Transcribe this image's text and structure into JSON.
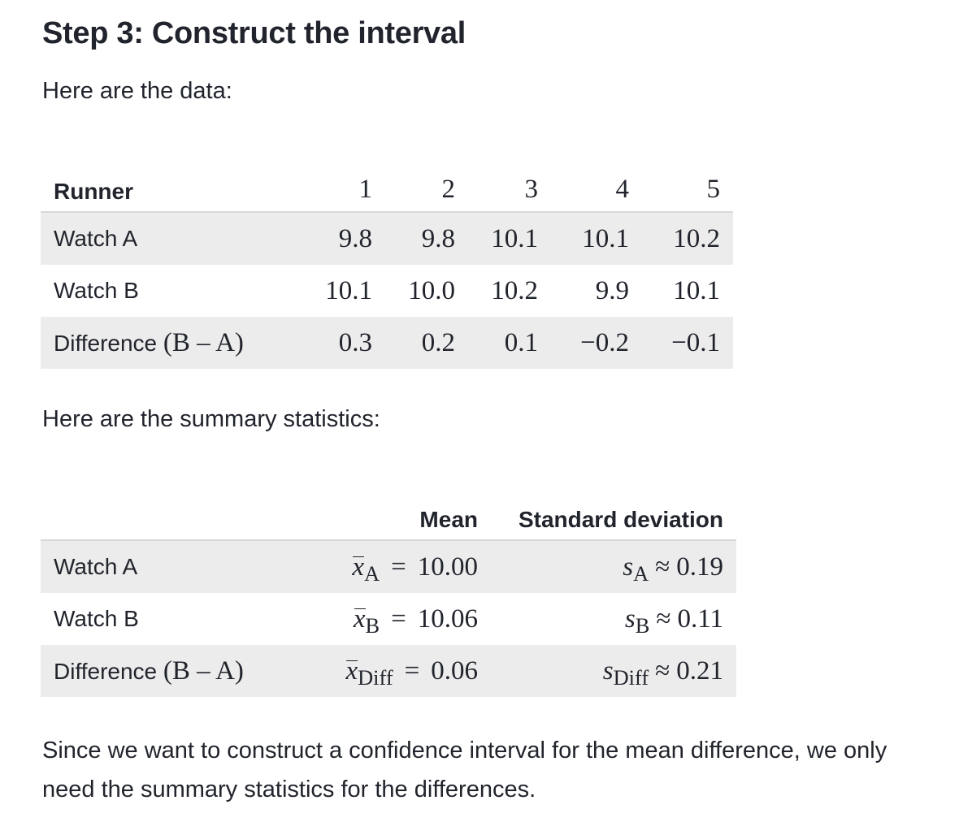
{
  "heading": "Step 3: Construct the interval",
  "intro_data": "Here are the data:",
  "data_table": {
    "header_label": "Runner",
    "columns": [
      "1",
      "2",
      "3",
      "4",
      "5"
    ],
    "rows": [
      {
        "label": "Watch A",
        "values": [
          "9.8",
          "9.8",
          "10.1",
          "10.1",
          "10.2"
        ]
      },
      {
        "label": "Watch B",
        "values": [
          "10.1",
          "10.0",
          "10.2",
          "9.9",
          "10.1"
        ]
      },
      {
        "label": "Difference",
        "label_math": "(B – A)",
        "values": [
          "0.3",
          "0.2",
          "0.1",
          "−0.2",
          "−0.1"
        ]
      }
    ]
  },
  "intro_summary": "Here are the summary statistics:",
  "summary_table": {
    "col_mean": "Mean",
    "col_sd": "Standard deviation",
    "rows": [
      {
        "label": "Watch A",
        "mean_var": "x",
        "mean_sub": "A",
        "mean_rel": "=",
        "mean_value": "10.00",
        "sd_var": "s",
        "sd_sub": "A",
        "sd_rel": "≈",
        "sd_value": "0.19"
      },
      {
        "label": "Watch B",
        "mean_var": "x",
        "mean_sub": "B",
        "mean_rel": "=",
        "mean_value": "10.06",
        "sd_var": "s",
        "sd_sub": "B",
        "sd_rel": "≈",
        "sd_value": "0.11"
      },
      {
        "label": "Difference",
        "label_math": "(B – A)",
        "mean_var": "x",
        "mean_sub": "Diff",
        "mean_rel": "=",
        "mean_value": "0.06",
        "sd_var": "s",
        "sd_sub": "Diff",
        "sd_rel": "≈",
        "sd_value": "0.21"
      }
    ]
  },
  "closing": "Since we want to construct a confidence interval for the mean difference, we only need the summary statistics for the differences."
}
